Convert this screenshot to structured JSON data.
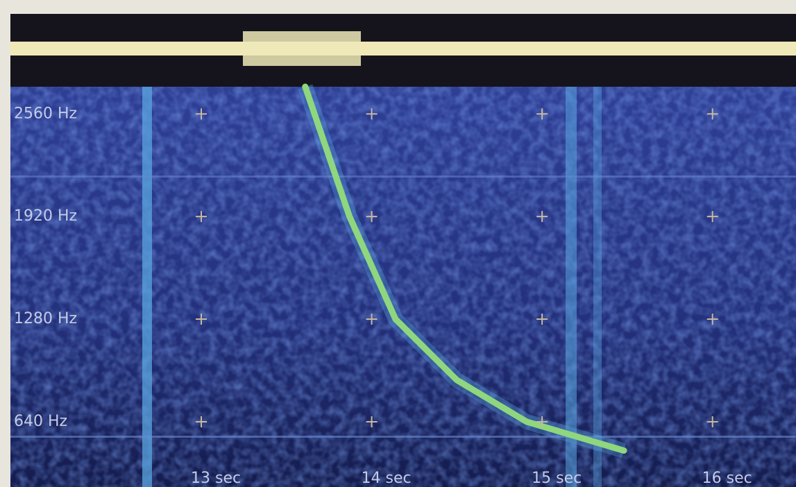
{
  "chart_data": {
    "type": "spectrogram",
    "xlim": [
      11.88,
      16.49
    ],
    "ylim": [
      233,
      2730
    ],
    "xticks": [
      {
        "value": 13,
        "label": "13 sec"
      },
      {
        "value": 14,
        "label": "14 sec"
      },
      {
        "value": 15,
        "label": "15 sec"
      },
      {
        "value": 16,
        "label": "16 sec"
      }
    ],
    "yticks": [
      {
        "value": 640,
        "label": "640 Hz"
      },
      {
        "value": 1280,
        "label": "1280 Hz"
      },
      {
        "value": 1920,
        "label": "1920 Hz"
      },
      {
        "value": 2560,
        "label": "2560 Hz"
      }
    ],
    "series": [
      {
        "color": "#8fd67e",
        "x": [
          13.61,
          13.87,
          14.14,
          14.5,
          14.91,
          15.48
        ],
        "values": [
          2730,
          1920,
          1280,
          900,
          640,
          460
        ]
      }
    ]
  }
}
